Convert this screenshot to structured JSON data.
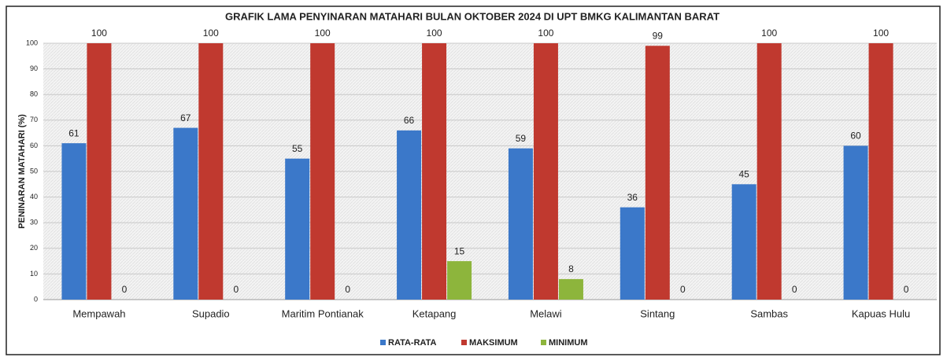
{
  "chart_data": {
    "type": "bar",
    "title": "GRAFIK LAMA PENYINARAN MATAHARI BULAN OKTOBER 2024 DI UPT BMKG KALIMANTAN BARAT",
    "y_label": "PENINARAN MATAHARI (%)",
    "categories": [
      "Mempawah",
      "Supadio",
      "Maritim Pontianak",
      "Ketapang",
      "Melawi",
      "Sintang",
      "Sambas",
      "Kapuas Hulu"
    ],
    "series": [
      {
        "name": "RATA-RATA",
        "color": "#3b78c9",
        "values": [
          61,
          67,
          55,
          66,
          59,
          36,
          45,
          60
        ]
      },
      {
        "name": "MAKSIMUM",
        "color": "#c0392f",
        "values": [
          100,
          100,
          100,
          100,
          100,
          99,
          100,
          100
        ]
      },
      {
        "name": "MINIMUM",
        "color": "#8db53c",
        "values": [
          0,
          0,
          0,
          15,
          8,
          0,
          0,
          0
        ]
      }
    ],
    "ylim": [
      0,
      100
    ],
    "yticks": [
      0,
      10,
      20,
      30,
      40,
      50,
      60,
      70,
      80,
      90,
      100
    ],
    "grid": true,
    "legend": "bottom"
  }
}
